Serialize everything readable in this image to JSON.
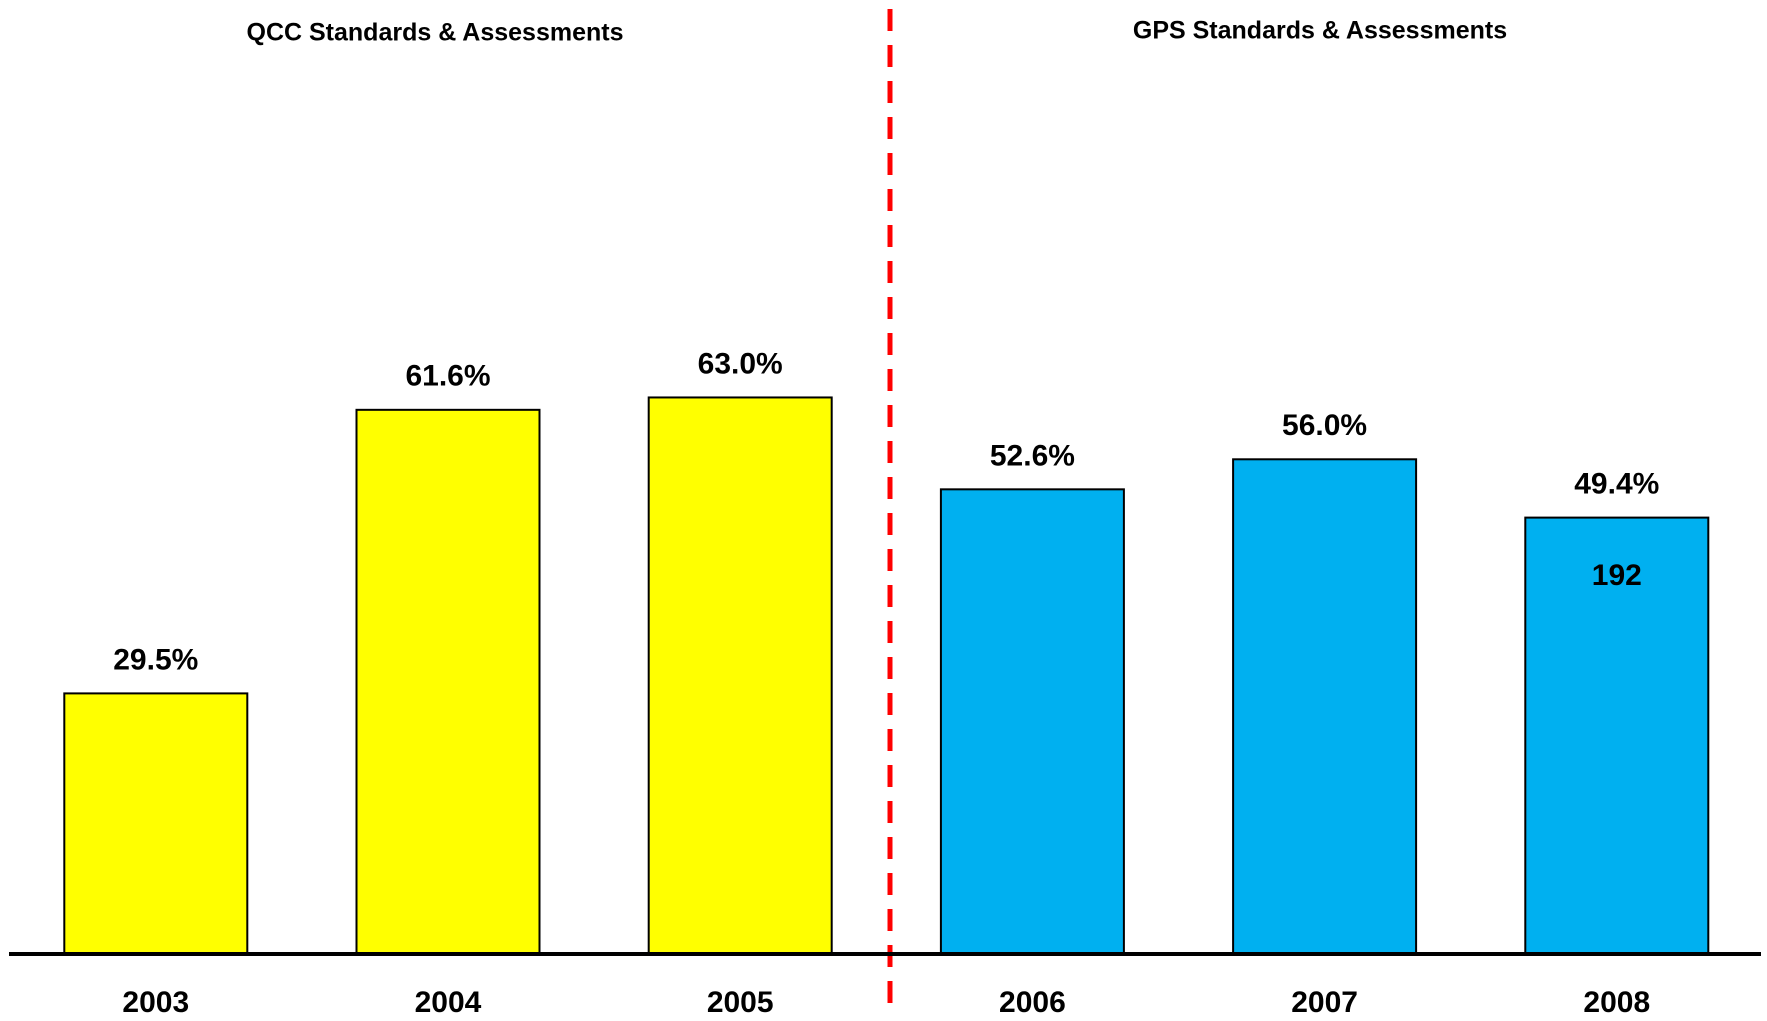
{
  "chart_data": {
    "type": "bar",
    "group_labels": [
      "QCC Standards & Assessments",
      "GPS Standards & Assessments"
    ],
    "categories": [
      "2003",
      "2004",
      "2005",
      "2006",
      "2007",
      "2008"
    ],
    "values": [
      29.5,
      61.6,
      63.0,
      52.6,
      56.0,
      49.4
    ],
    "value_labels": [
      "29.5%",
      "61.6%",
      "63.0%",
      "52.6%",
      "56.0%",
      "49.4%"
    ],
    "colors": [
      "#ffff00",
      "#ffff00",
      "#ffff00",
      "#00b0f0",
      "#00b0f0",
      "#00b0f0"
    ],
    "annotation": "192",
    "divider_color": "#ff0000",
    "ylim": [
      0,
      100
    ]
  }
}
